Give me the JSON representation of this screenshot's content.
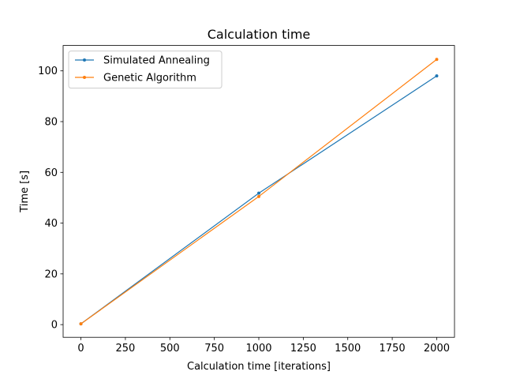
{
  "chart_data": {
    "type": "line",
    "title": "Calculation time",
    "xlabel": "Calculation time [iterations]",
    "ylabel": "Time [s]",
    "xlim": [
      -100,
      2100
    ],
    "ylim": [
      -5,
      110
    ],
    "xticks": [
      0,
      250,
      500,
      750,
      1000,
      1250,
      1500,
      1750,
      2000
    ],
    "yticks": [
      0,
      20,
      40,
      60,
      80,
      100
    ],
    "grid": false,
    "legend": "top-left",
    "series": [
      {
        "name": "Simulated Annealing",
        "color": "#1f77b4",
        "x": [
          0,
          1000,
          2000
        ],
        "y": [
          0.3,
          51.8,
          98.0
        ]
      },
      {
        "name": "Genetic Algorithm",
        "color": "#ff7f0e",
        "x": [
          0,
          1000,
          2000
        ],
        "y": [
          0.3,
          50.5,
          104.5
        ]
      }
    ]
  }
}
